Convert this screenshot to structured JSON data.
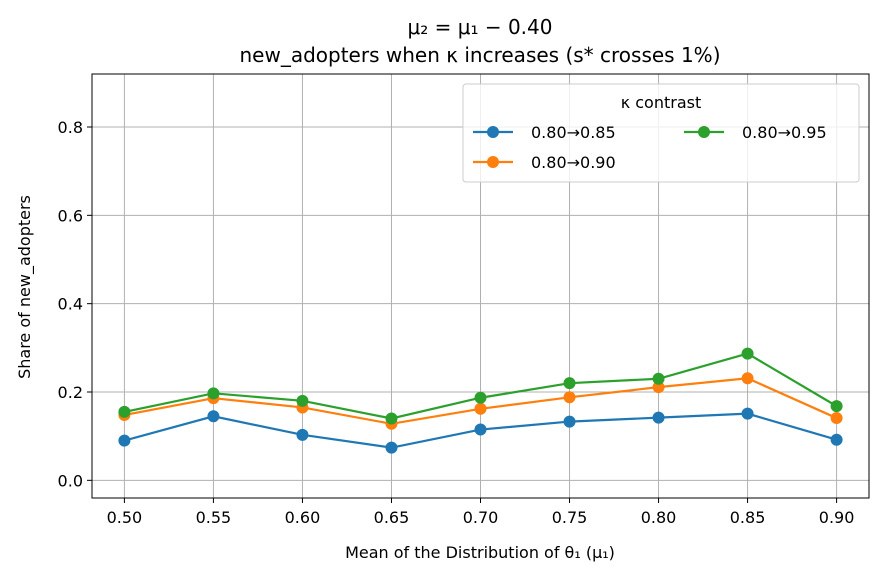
{
  "chart_data": {
    "type": "line",
    "title_line1": "μ₂ = μ₁ − 0.40",
    "title_line2": "new_adopters when κ increases (s* crosses 1%)",
    "xlabel": "Mean of the Distribution of θ₁ (μ₁)",
    "ylabel": "Share of new_adopters",
    "x": [
      0.5,
      0.55,
      0.6,
      0.65,
      0.7,
      0.75,
      0.8,
      0.85,
      0.9
    ],
    "x_tick_labels": [
      "0.50",
      "0.55",
      "0.60",
      "0.65",
      "0.70",
      "0.75",
      "0.80",
      "0.85",
      "0.90"
    ],
    "y_ticks": [
      0.0,
      0.2,
      0.4,
      0.6,
      0.8
    ],
    "y_tick_labels": [
      "0.0",
      "0.2",
      "0.4",
      "0.6",
      "0.8"
    ],
    "xlim": [
      0.4818,
      0.9182
    ],
    "ylim": [
      -0.04,
      0.92
    ],
    "grid": true,
    "legend": {
      "title": "κ contrast",
      "placement": "top-right",
      "columns": 2
    },
    "series": [
      {
        "name": "0.80→0.85",
        "color": "#1f77b4",
        "values": [
          0.09,
          0.145,
          0.103,
          0.074,
          0.115,
          0.133,
          0.142,
          0.151,
          0.092
        ]
      },
      {
        "name": "0.80→0.90",
        "color": "#ff7f0e",
        "values": [
          0.148,
          0.186,
          0.165,
          0.128,
          0.162,
          0.188,
          0.211,
          0.231,
          0.141
        ]
      },
      {
        "name": "0.80→0.95",
        "color": "#2ca02c",
        "values": [
          0.155,
          0.197,
          0.18,
          0.14,
          0.187,
          0.22,
          0.23,
          0.287,
          0.168
        ]
      }
    ]
  }
}
